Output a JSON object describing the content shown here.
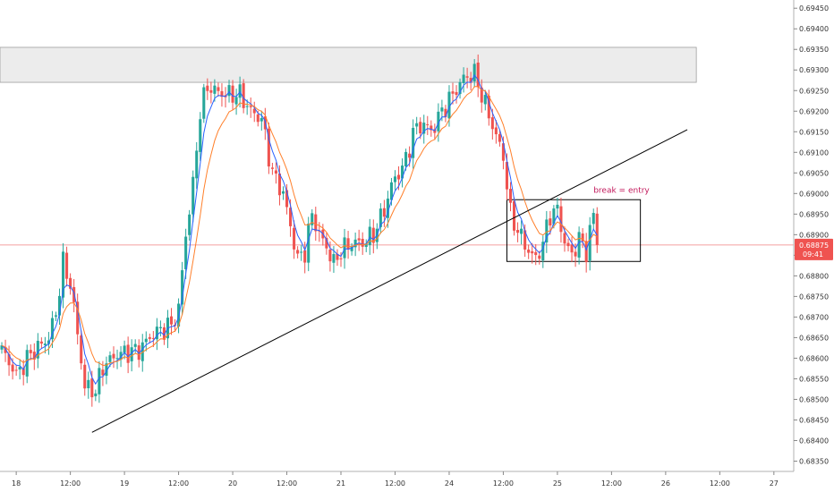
{
  "chart_data": {
    "type": "candlestick",
    "instrument_note": "",
    "colors": {
      "up": "#26a69a",
      "down": "#ef5350",
      "ma_fast": "#2962ff",
      "ma_slow": "#ff7f2a",
      "price_line": "#f08080",
      "price_badge": "#ef5350",
      "trendline": "#000000",
      "resistance_zone_fill": "#ececec",
      "resistance_zone_border": "#9e9e9e",
      "consolidation_box": "#000000",
      "annotation": "#c2185b"
    },
    "y_axis": {
      "min": 0.68325,
      "max": 0.6947,
      "ticks": [
        "0.69450",
        "0.69400",
        "0.69350",
        "0.69300",
        "0.69250",
        "0.69200",
        "0.69150",
        "0.69100",
        "0.69050",
        "0.69000",
        "0.68950",
        "0.68900",
        "0.68850",
        "0.68800",
        "0.68750",
        "0.68700",
        "0.68650",
        "0.68600",
        "0.68550",
        "0.68500",
        "0.68450",
        "0.68400",
        "0.68350"
      ]
    },
    "x_axis": {
      "bars": 220,
      "ticks": [
        {
          "bar": 4,
          "label": "18"
        },
        {
          "bar": 19,
          "label": "12:00"
        },
        {
          "bar": 34,
          "label": "19"
        },
        {
          "bar": 49,
          "label": "12:00"
        },
        {
          "bar": 64,
          "label": "20"
        },
        {
          "bar": 79,
          "label": "12:00"
        },
        {
          "bar": 94,
          "label": "21"
        },
        {
          "bar": 109,
          "label": "12:00"
        },
        {
          "bar": 124,
          "label": "24"
        },
        {
          "bar": 139,
          "label": "12:00"
        },
        {
          "bar": 154,
          "label": "25"
        },
        {
          "bar": 169,
          "label": "12:00"
        },
        {
          "bar": 184,
          "label": "26"
        },
        {
          "bar": 199,
          "label": "12:00"
        },
        {
          "bar": 214,
          "label": "27"
        }
      ]
    },
    "current_price": {
      "value": 0.68875,
      "label": "0.68875",
      "countdown": "09:41"
    },
    "price_waypoints": [
      [
        0,
        0.6862
      ],
      [
        4,
        0.6856
      ],
      [
        8,
        0.6861
      ],
      [
        13,
        0.6865
      ],
      [
        15,
        0.6871
      ],
      [
        17,
        0.6883
      ],
      [
        19,
        0.6878
      ],
      [
        21,
        0.6866
      ],
      [
        23,
        0.6853
      ],
      [
        26,
        0.6852
      ],
      [
        28,
        0.6858
      ],
      [
        32,
        0.6861
      ],
      [
        38,
        0.6862
      ],
      [
        42,
        0.6866
      ],
      [
        47,
        0.6868
      ],
      [
        49,
        0.6872
      ],
      [
        51,
        0.689
      ],
      [
        53,
        0.6902
      ],
      [
        55,
        0.692
      ],
      [
        57,
        0.6926
      ],
      [
        59,
        0.6925
      ],
      [
        62,
        0.6924
      ],
      [
        66,
        0.6924
      ],
      [
        69,
        0.692
      ],
      [
        72,
        0.6918
      ],
      [
        75,
        0.6905
      ],
      [
        78,
        0.69
      ],
      [
        80,
        0.6892
      ],
      [
        82,
        0.6884
      ],
      [
        84,
        0.6886
      ],
      [
        86,
        0.6895
      ],
      [
        88,
        0.689
      ],
      [
        90,
        0.6887
      ],
      [
        92,
        0.6883
      ],
      [
        94,
        0.6886
      ],
      [
        97,
        0.6888
      ],
      [
        100,
        0.6888
      ],
      [
        103,
        0.689
      ],
      [
        106,
        0.6896
      ],
      [
        108,
        0.6902
      ],
      [
        110,
        0.6905
      ],
      [
        112,
        0.6908
      ],
      [
        114,
        0.6915
      ],
      [
        117,
        0.6917
      ],
      [
        119,
        0.6915
      ],
      [
        122,
        0.692
      ],
      [
        125,
        0.6924
      ],
      [
        128,
        0.6928
      ],
      [
        131,
        0.6929
      ],
      [
        133,
        0.6924
      ],
      [
        135,
        0.6919
      ],
      [
        137,
        0.6914
      ],
      [
        139,
        0.6909
      ],
      [
        141,
        0.6895
      ],
      [
        143,
        0.6891
      ],
      [
        146,
        0.6886
      ],
      [
        148,
        0.6884
      ],
      [
        150,
        0.6888
      ],
      [
        152,
        0.6895
      ],
      [
        154,
        0.6896
      ],
      [
        156,
        0.6888
      ],
      [
        158,
        0.6885
      ],
      [
        160,
        0.6889
      ],
      [
        162,
        0.6886
      ],
      [
        164,
        0.6895
      ],
      [
        165,
        0.68875
      ]
    ],
    "last_candle_bar": 165,
    "resistance_zone": {
      "bar_start": 0,
      "bar_end": 193,
      "price_low": 0.6927,
      "price_high": 0.69355
    },
    "trendline": {
      "bar_start": 25,
      "price_start": 0.6842,
      "bar_end": 190,
      "price_end": 0.69155
    },
    "consolidation_box": {
      "bar_start": 140,
      "bar_end": 177,
      "price_low": 0.68835,
      "price_high": 0.68985
    },
    "annotation": {
      "text": "break = entry",
      "bar": 164,
      "price": 0.69002
    }
  }
}
